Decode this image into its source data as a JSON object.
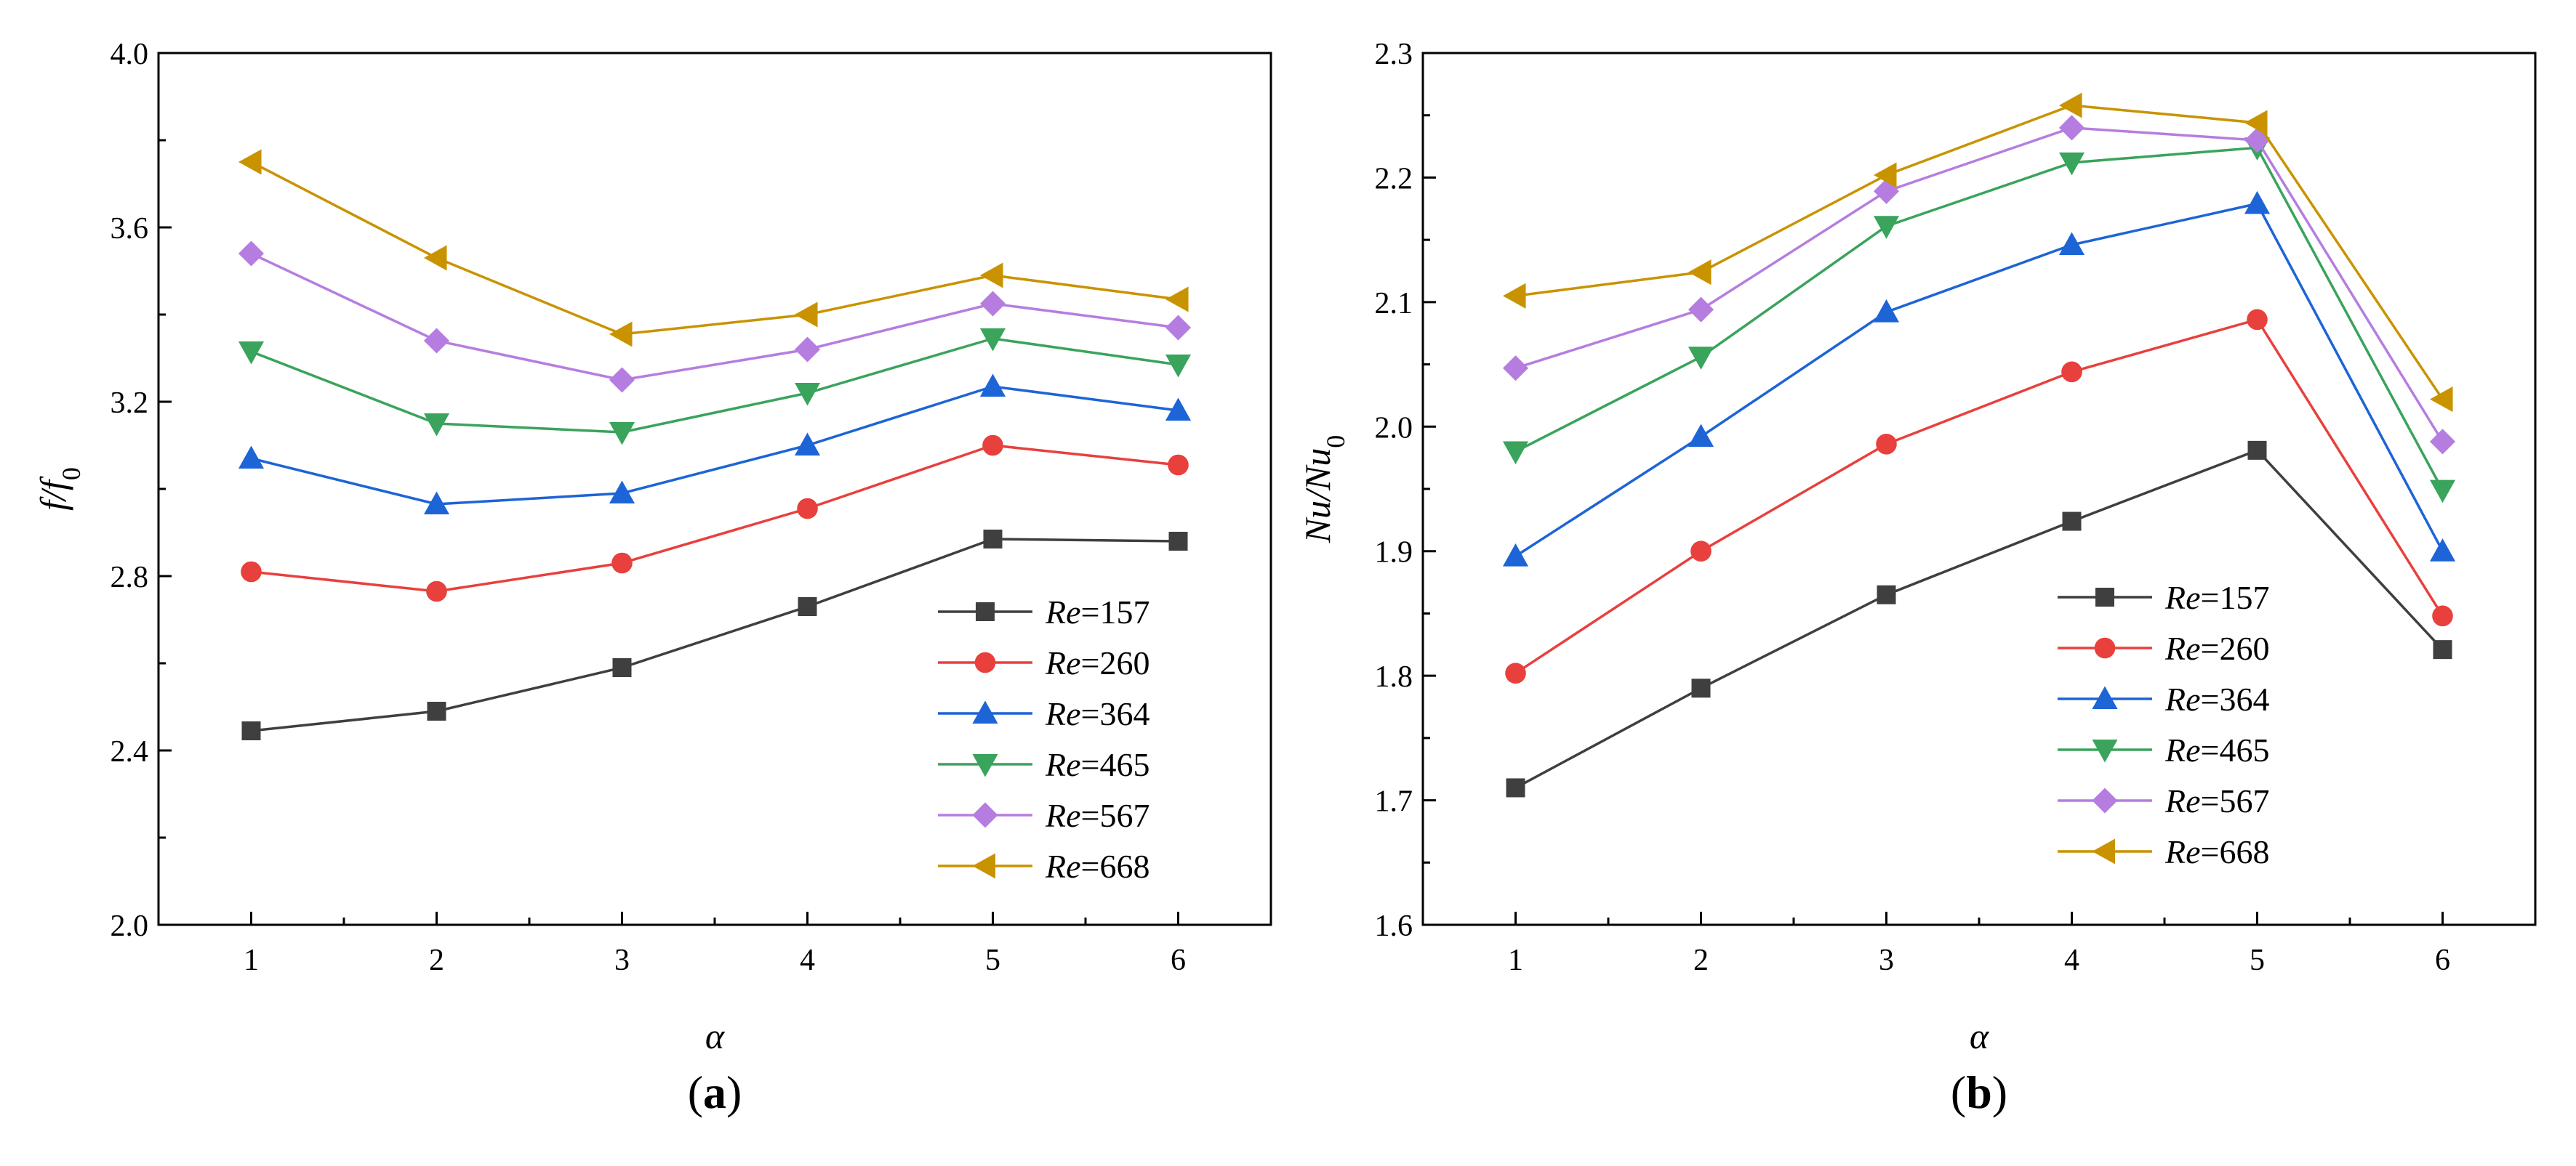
{
  "series_style": [
    {
      "color": "#3f3f3f",
      "marker": "square"
    },
    {
      "color": "#e8403d",
      "marker": "circle"
    },
    {
      "color": "#1d64d6",
      "marker": "triangle-up"
    },
    {
      "color": "#3aa35c",
      "marker": "triangle-down"
    },
    {
      "color": "#b67de0",
      "marker": "diamond"
    },
    {
      "color": "#c99300",
      "marker": "triangle-left"
    }
  ],
  "chart_data": [
    {
      "type": "line",
      "panel_label": {
        "open": "(",
        "letter": "a",
        "close": ")"
      },
      "xlabel": "α",
      "ylabel": {
        "main": "f/f",
        "sub": "0"
      },
      "x": [
        1,
        2,
        3,
        4,
        5,
        6
      ],
      "x_ticks": [
        1,
        2,
        3,
        4,
        5,
        6
      ],
      "xlim": [
        0.5,
        6.5
      ],
      "ylim": [
        2.0,
        4.0
      ],
      "y_ticks": [
        2.0,
        2.4,
        2.8,
        3.2,
        3.6,
        4.0
      ],
      "y_tick_labels": [
        "2.0",
        "2.4",
        "2.8",
        "3.2",
        "3.6",
        "4.0"
      ],
      "legend_position": "bottom-right",
      "series": [
        {
          "name_prefix": "Re",
          "name_value": "=157",
          "values": [
            2.445,
            2.49,
            2.59,
            2.73,
            2.885,
            2.88
          ]
        },
        {
          "name_prefix": "Re",
          "name_value": "=260",
          "values": [
            2.81,
            2.765,
            2.83,
            2.955,
            3.1,
            3.055
          ]
        },
        {
          "name_prefix": "Re",
          "name_value": "=364",
          "values": [
            3.07,
            2.965,
            2.99,
            3.1,
            3.235,
            3.18
          ]
        },
        {
          "name_prefix": "Re",
          "name_value": "=465",
          "values": [
            3.315,
            3.15,
            3.13,
            3.22,
            3.345,
            3.285
          ]
        },
        {
          "name_prefix": "Re",
          "name_value": "=567",
          "values": [
            3.54,
            3.34,
            3.25,
            3.32,
            3.425,
            3.37
          ]
        },
        {
          "name_prefix": "Re",
          "name_value": "=668",
          "values": [
            3.75,
            3.53,
            3.355,
            3.4,
            3.49,
            3.435
          ]
        }
      ]
    },
    {
      "type": "line",
      "panel_label": {
        "open": "(",
        "letter": "b",
        "close": ")"
      },
      "xlabel": "α",
      "ylabel": {
        "main": "Nu/Nu",
        "sub": "0"
      },
      "x": [
        1,
        2,
        3,
        4,
        5,
        6
      ],
      "x_ticks": [
        1,
        2,
        3,
        4,
        5,
        6
      ],
      "xlim": [
        0.5,
        6.5
      ],
      "ylim": [
        1.6,
        2.3
      ],
      "y_ticks": [
        1.6,
        1.7,
        1.8,
        1.9,
        2.0,
        2.1,
        2.2,
        2.3
      ],
      "y_tick_labels": [
        "1.6",
        "1.7",
        "1.8",
        "1.9",
        "2.0",
        "2.1",
        "2.2",
        "2.3"
      ],
      "legend_position": "bottom-center",
      "series": [
        {
          "name_prefix": "Re",
          "name_value": "=157",
          "values": [
            1.71,
            1.79,
            1.865,
            1.924,
            1.981,
            1.821
          ]
        },
        {
          "name_prefix": "Re",
          "name_value": "=260",
          "values": [
            1.802,
            1.9,
            1.986,
            2.044,
            2.086,
            1.848
          ]
        },
        {
          "name_prefix": "Re",
          "name_value": "=364",
          "values": [
            1.896,
            1.992,
            2.092,
            2.146,
            2.179,
            1.9
          ]
        },
        {
          "name_prefix": "Re",
          "name_value": "=465",
          "values": [
            1.98,
            2.056,
            2.161,
            2.212,
            2.224,
            1.949
          ]
        },
        {
          "name_prefix": "Re",
          "name_value": "=567",
          "values": [
            2.047,
            2.094,
            2.189,
            2.24,
            2.23,
            1.988
          ]
        },
        {
          "name_prefix": "Re",
          "name_value": "=668",
          "values": [
            2.105,
            2.124,
            2.202,
            2.258,
            2.244,
            2.022
          ]
        }
      ]
    }
  ]
}
